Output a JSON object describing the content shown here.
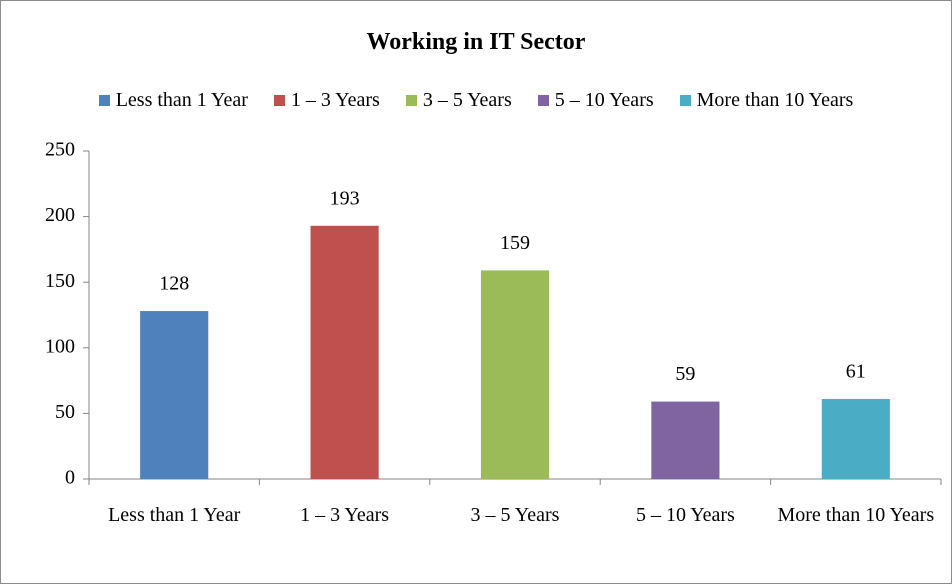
{
  "chart_data": {
    "type": "bar",
    "title": "Working in IT Sector",
    "categories": [
      "Less than 1 Year",
      "1 – 3 Years",
      "3 – 5 Years",
      "5 – 10 Years",
      "More than 10 Years"
    ],
    "values": [
      128,
      193,
      159,
      59,
      61
    ],
    "colors": [
      "#4f81bd",
      "#c0504d",
      "#9bbb59",
      "#8064a2",
      "#4bacc6"
    ],
    "ylim": [
      0,
      250
    ],
    "yticks": [
      0,
      50,
      100,
      150,
      200,
      250
    ],
    "grid": false,
    "legend": "top"
  }
}
